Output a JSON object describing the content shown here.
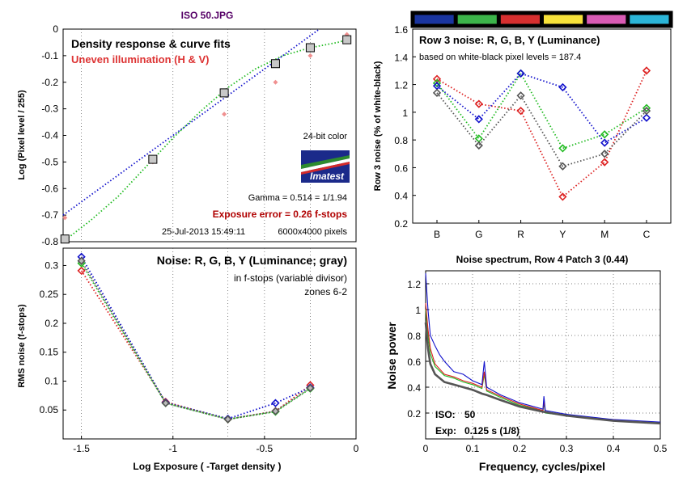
{
  "figure_title": "ISO 50.JPG",
  "colors": {
    "red": "#dd2222",
    "green": "#22bb22",
    "blue": "#1111cc",
    "gray": "#555555",
    "maroon": "#b00000",
    "grid": "#555555",
    "title_purple": "#550066"
  },
  "chart_data": [
    {
      "id": "density",
      "type": "line",
      "title": "Density response & curve fits",
      "subtitle": "Uneven illumination (H & V)",
      "xlabel": "",
      "ylabel": "Log (Pixel level / 255)",
      "xlim": [
        -1.6,
        0
      ],
      "ylim": [
        -0.8,
        0
      ],
      "yticks": [
        "-0.8",
        "-0.7",
        "-0.6",
        "-0.5",
        "-0.4",
        "-0.3",
        "-0.2",
        "-0.1",
        "0"
      ],
      "ytick_values": [
        -0.8,
        -0.7,
        -0.6,
        -0.5,
        -0.4,
        -0.3,
        -0.2,
        -0.1,
        0
      ],
      "points": {
        "x": [
          -1.59,
          -1.11,
          -0.72,
          -0.44,
          -0.25,
          -0.05
        ],
        "y": [
          -0.79,
          -0.49,
          -0.24,
          -0.13,
          -0.07,
          -0.04
        ]
      },
      "uneven_points": {
        "x": [
          -1.59,
          -1.11,
          -0.72,
          -0.44,
          -0.25,
          -0.05
        ],
        "y": [
          -0.71,
          -0.5,
          -0.32,
          -0.2,
          -0.1,
          -0.02
        ]
      },
      "fit_green": {
        "x": [
          -1.6,
          -1.45,
          -1.3,
          -1.15,
          -1.0,
          -0.85,
          -0.7,
          -0.55,
          -0.4,
          -0.25,
          -0.1,
          -0.05
        ],
        "y": [
          -0.8,
          -0.72,
          -0.63,
          -0.52,
          -0.41,
          -0.31,
          -0.22,
          -0.15,
          -0.1,
          -0.07,
          -0.05,
          -0.04
        ]
      },
      "fit_blue": {
        "x": [
          -1.6,
          -0.2
        ],
        "y": [
          -0.7,
          0.0
        ]
      },
      "annotations": {
        "color_depth": "24-bit color",
        "gamma": "Gamma = 0.514 = 1/1.94",
        "exposure_error": "Exposure error = 0.26 f-stops",
        "timestamp": "25-Jul-2013 15:49:11",
        "size": "6000x4000 pixels",
        "logo": "Imatest"
      }
    },
    {
      "id": "row3noise",
      "type": "line",
      "title": "Row 3 noise: R, G, B, Y (Luminance)",
      "subtitle": "based on white-black pixel levels = 187.4",
      "ylabel": "Row 3 noise (% of white-black)",
      "categories": [
        "B",
        "G",
        "R",
        "Y",
        "M",
        "C"
      ],
      "ylim": [
        0.2,
        1.6
      ],
      "yticks": [
        "0.2",
        "0.4",
        "0.6",
        "0.8",
        "1",
        "1.2",
        "1.4",
        "1.6"
      ],
      "ytick_values": [
        0.2,
        0.4,
        0.6,
        0.8,
        1.0,
        1.2,
        1.4,
        1.6
      ],
      "patch_colors": [
        "#1a35a0",
        "#3cb44a",
        "#d62f2f",
        "#f7e23a",
        "#d95bb5",
        "#2bb5d8"
      ],
      "series": [
        {
          "name": "R",
          "color": "red",
          "values": [
            1.24,
            1.06,
            1.01,
            0.39,
            0.64,
            1.3
          ]
        },
        {
          "name": "G",
          "color": "green",
          "values": [
            1.21,
            0.81,
            1.28,
            0.74,
            0.84,
            1.03
          ]
        },
        {
          "name": "B",
          "color": "blue",
          "values": [
            1.19,
            0.95,
            1.28,
            1.18,
            0.78,
            0.96
          ]
        },
        {
          "name": "Y",
          "color": "gray",
          "values": [
            1.14,
            0.76,
            1.12,
            0.61,
            0.7,
            1.01
          ]
        }
      ]
    },
    {
      "id": "rmsnoise",
      "type": "line",
      "title": "Noise: R, G, B, Y (Luminance; gray)",
      "subtitle": "in f-stops (variable divisor)",
      "subtitle2": "zones 6-2",
      "xlabel": "Log Exposure ( -Target density )",
      "ylabel": "RMS noise (f-stops)",
      "xlim": [
        -1.6,
        0
      ],
      "ylim": [
        0,
        0.33
      ],
      "xticks": [
        "-1.5",
        "-1",
        "-0.5",
        "0"
      ],
      "xtick_values": [
        -1.5,
        -1.0,
        -0.5,
        0
      ],
      "yticks": [
        "0.05",
        "0.1",
        "0.15",
        "0.2",
        "0.25",
        "0.3"
      ],
      "ytick_values": [
        0.05,
        0.1,
        0.15,
        0.2,
        0.25,
        0.3
      ],
      "x": [
        -1.5,
        -1.04,
        -0.7,
        -0.44,
        -0.25
      ],
      "series": [
        {
          "name": "R",
          "color": "red",
          "values": [
            0.291,
            0.064,
            0.034,
            0.048,
            0.093
          ]
        },
        {
          "name": "G",
          "color": "green",
          "values": [
            0.304,
            0.062,
            0.034,
            0.047,
            0.087
          ]
        },
        {
          "name": "B",
          "color": "blue",
          "values": [
            0.315,
            0.063,
            0.035,
            0.062,
            0.089
          ]
        },
        {
          "name": "Y",
          "color": "gray",
          "values": [
            0.308,
            0.062,
            0.034,
            0.048,
            0.088
          ]
        }
      ]
    },
    {
      "id": "spectrum",
      "type": "line",
      "title": "Noise spectrum, Row 4 Patch 3 (0.44)",
      "xlabel": "Frequency, cycles/pixel",
      "ylabel": "Noise power",
      "xlim": [
        0,
        0.5
      ],
      "ylim": [
        0,
        1.3
      ],
      "xticks": [
        "0",
        "0.1",
        "0.2",
        "0.3",
        "0.4",
        "0.5"
      ],
      "xtick_values": [
        0,
        0.1,
        0.2,
        0.3,
        0.4,
        0.5
      ],
      "yticks": [
        "0.2",
        "0.4",
        "0.6",
        "0.8",
        "1",
        "1.2"
      ],
      "ytick_values": [
        0.2,
        0.4,
        0.6,
        0.8,
        1.0,
        1.2
      ],
      "iso_label": "ISO:",
      "iso_value": "50",
      "exp_label": "Exp:",
      "exp_value": "0.125 s  (1/8)",
      "series": [
        {
          "name": "R",
          "color": "red",
          "x": [
            0,
            0.005,
            0.01,
            0.02,
            0.04,
            0.06,
            0.08,
            0.1,
            0.12,
            0.125,
            0.13,
            0.16,
            0.2,
            0.25,
            0.252,
            0.255,
            0.3,
            0.35,
            0.4,
            0.45,
            0.5
          ],
          "values": [
            1.05,
            0.85,
            0.7,
            0.58,
            0.5,
            0.48,
            0.45,
            0.43,
            0.4,
            0.52,
            0.38,
            0.33,
            0.27,
            0.22,
            0.3,
            0.21,
            0.18,
            0.16,
            0.15,
            0.13,
            0.12
          ]
        },
        {
          "name": "G",
          "color": "green",
          "x": [
            0,
            0.005,
            0.01,
            0.02,
            0.04,
            0.06,
            0.08,
            0.1,
            0.12,
            0.125,
            0.13,
            0.16,
            0.2,
            0.25,
            0.252,
            0.255,
            0.3,
            0.35,
            0.4,
            0.45,
            0.5
          ],
          "values": [
            1.0,
            0.8,
            0.66,
            0.56,
            0.49,
            0.47,
            0.44,
            0.42,
            0.39,
            0.5,
            0.37,
            0.32,
            0.26,
            0.22,
            0.28,
            0.2,
            0.18,
            0.16,
            0.14,
            0.13,
            0.12
          ]
        },
        {
          "name": "B",
          "color": "blue",
          "x": [
            0,
            0.005,
            0.01,
            0.02,
            0.03,
            0.04,
            0.06,
            0.08,
            0.1,
            0.12,
            0.125,
            0.13,
            0.16,
            0.2,
            0.25,
            0.252,
            0.255,
            0.3,
            0.35,
            0.4,
            0.45,
            0.5
          ],
          "values": [
            1.28,
            1.0,
            0.8,
            0.72,
            0.65,
            0.6,
            0.52,
            0.5,
            0.45,
            0.42,
            0.6,
            0.4,
            0.34,
            0.28,
            0.23,
            0.33,
            0.22,
            0.19,
            0.17,
            0.15,
            0.14,
            0.13
          ]
        },
        {
          "name": "Y",
          "color": "gray",
          "x": [
            0,
            0.005,
            0.01,
            0.02,
            0.04,
            0.06,
            0.08,
            0.1,
            0.12,
            0.13,
            0.16,
            0.2,
            0.25,
            0.3,
            0.35,
            0.4,
            0.45,
            0.5
          ],
          "values": [
            0.9,
            0.7,
            0.58,
            0.5,
            0.44,
            0.42,
            0.4,
            0.38,
            0.35,
            0.34,
            0.3,
            0.25,
            0.21,
            0.18,
            0.16,
            0.14,
            0.13,
            0.12
          ]
        }
      ]
    }
  ]
}
